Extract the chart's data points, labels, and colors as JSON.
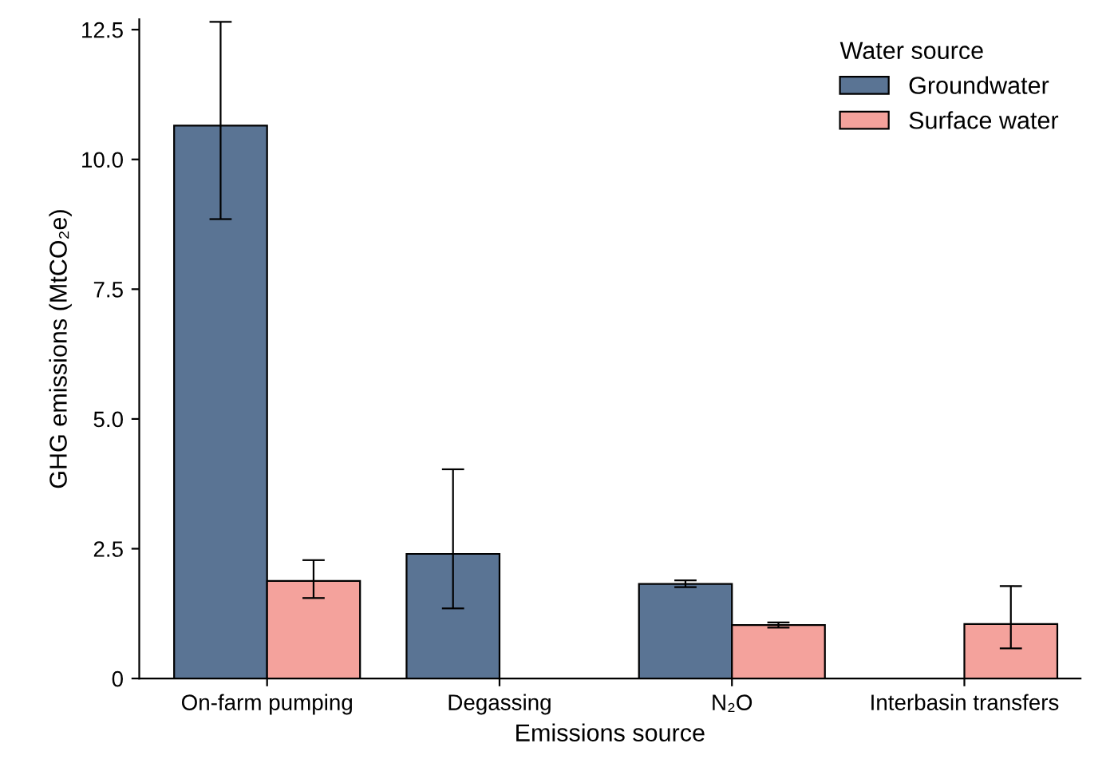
{
  "chart_data": {
    "type": "bar",
    "xlabel": "Emissions source",
    "ylabel": "GHG emissions (MtCO₂e)",
    "legend_title": "Water source",
    "categories": [
      "On-farm pumping",
      "Degassing",
      "N₂O",
      "Interbasin transfers"
    ],
    "series": [
      {
        "name": "Groundwater",
        "color": "#5a7494",
        "values": [
          10.65,
          2.4,
          1.82,
          null
        ],
        "errors": [
          [
            8.85,
            12.65
          ],
          [
            1.35,
            4.03
          ],
          [
            1.76,
            1.89
          ],
          null
        ]
      },
      {
        "name": "Surface water",
        "color": "#f4a29c",
        "values": [
          1.88,
          null,
          1.03,
          1.05
        ],
        "errors": [
          [
            1.55,
            2.28
          ],
          null,
          [
            0.98,
            1.08
          ],
          [
            0.58,
            1.78
          ]
        ]
      }
    ],
    "ylim": [
      0,
      12.7
    ],
    "yticks": [
      0,
      {
        "value": 2.5,
        "label": "2.5"
      },
      {
        "value": 5,
        "label": "5.0"
      },
      {
        "value": 7.5,
        "label": "7.5"
      },
      {
        "value": 10,
        "label": "10.0"
      },
      {
        "value": 12.5,
        "label": "12.5"
      }
    ],
    "grid": false,
    "legend": "top right"
  }
}
